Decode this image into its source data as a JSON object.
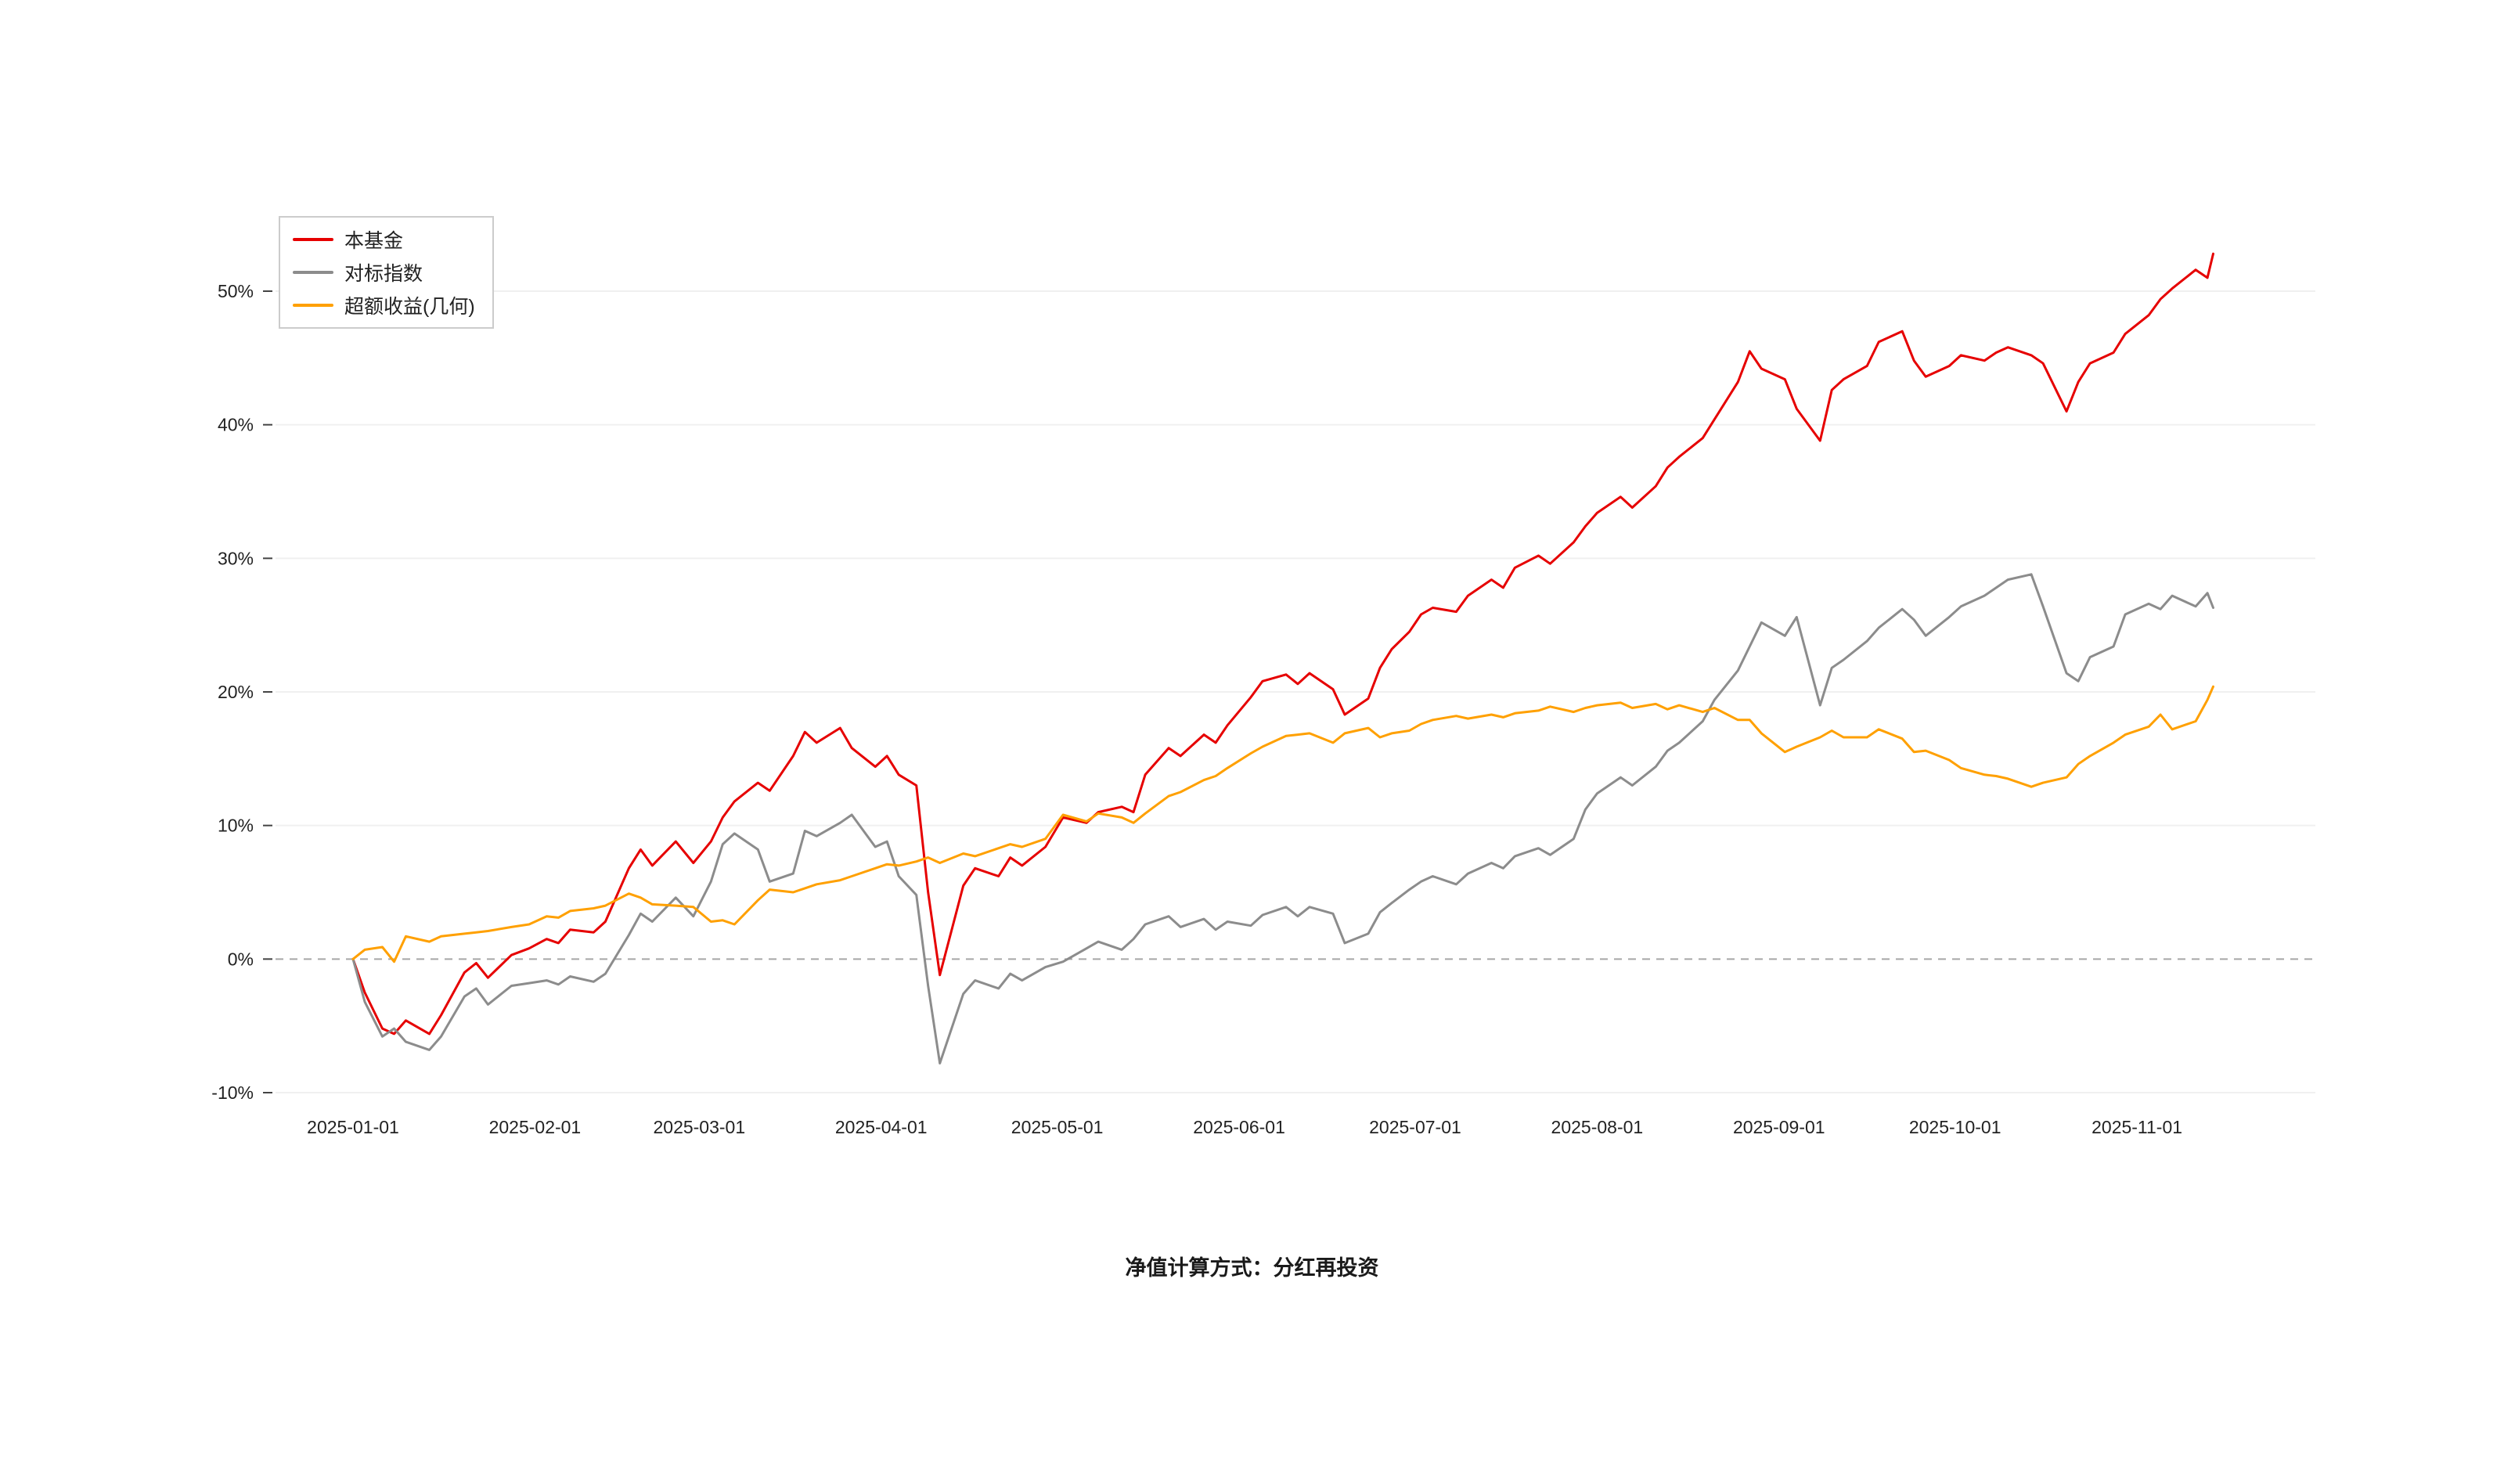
{
  "chart_data": {
    "type": "line",
    "title": "",
    "x": [
      "2025-01-01",
      "2025-01-03",
      "2025-01-06",
      "2025-01-08",
      "2025-01-10",
      "2025-01-14",
      "2025-01-16",
      "2025-01-20",
      "2025-01-22",
      "2025-01-24",
      "2025-01-28",
      "2025-01-31",
      "2025-02-03",
      "2025-02-05",
      "2025-02-07",
      "2025-02-11",
      "2025-02-13",
      "2025-02-17",
      "2025-02-19",
      "2025-02-21",
      "2025-02-25",
      "2025-02-28",
      "2025-03-03",
      "2025-03-05",
      "2025-03-07",
      "2025-03-11",
      "2025-03-13",
      "2025-03-17",
      "2025-03-19",
      "2025-03-21",
      "2025-03-25",
      "2025-03-27",
      "2025-03-31",
      "2025-04-02",
      "2025-04-04",
      "2025-04-07",
      "2025-04-09",
      "2025-04-11",
      "2025-04-15",
      "2025-04-17",
      "2025-04-21",
      "2025-04-23",
      "2025-04-25",
      "2025-04-29",
      "2025-05-02",
      "2025-05-06",
      "2025-05-08",
      "2025-05-12",
      "2025-05-14",
      "2025-05-16",
      "2025-05-20",
      "2025-05-22",
      "2025-05-26",
      "2025-05-28",
      "2025-05-30",
      "2025-06-03",
      "2025-06-05",
      "2025-06-09",
      "2025-06-11",
      "2025-06-13",
      "2025-06-17",
      "2025-06-19",
      "2025-06-23",
      "2025-06-25",
      "2025-06-27",
      "2025-06-30",
      "2025-07-02",
      "2025-07-04",
      "2025-07-08",
      "2025-07-10",
      "2025-07-14",
      "2025-07-16",
      "2025-07-18",
      "2025-07-22",
      "2025-07-24",
      "2025-07-28",
      "2025-07-30",
      "2025-08-01",
      "2025-08-05",
      "2025-08-07",
      "2025-08-11",
      "2025-08-13",
      "2025-08-15",
      "2025-08-19",
      "2025-08-21",
      "2025-08-25",
      "2025-08-27",
      "2025-08-29",
      "2025-09-02",
      "2025-09-04",
      "2025-09-08",
      "2025-09-10",
      "2025-09-12",
      "2025-09-16",
      "2025-09-18",
      "2025-09-22",
      "2025-09-24",
      "2025-09-26",
      "2025-09-30",
      "2025-10-02",
      "2025-10-06",
      "2025-10-08",
      "2025-10-10",
      "2025-10-14",
      "2025-10-16",
      "2025-10-20",
      "2025-10-22",
      "2025-10-24",
      "2025-10-28",
      "2025-10-30",
      "2025-11-03",
      "2025-11-05",
      "2025-11-07",
      "2025-11-11",
      "2025-11-13",
      "2025-11-14"
    ],
    "series": [
      {
        "name": "本基金",
        "color": "#e60000",
        "values": [
          0,
          -2.5,
          -5.2,
          -5.6,
          -4.6,
          -5.6,
          -4.2,
          -1.0,
          -0.3,
          -1.4,
          0.3,
          0.8,
          1.5,
          1.2,
          2.2,
          2.0,
          2.8,
          6.8,
          8.2,
          7.0,
          8.8,
          7.2,
          8.8,
          10.6,
          11.8,
          13.2,
          12.6,
          15.2,
          17.0,
          16.2,
          17.3,
          15.8,
          14.4,
          15.2,
          13.8,
          13.0,
          5.0,
          -1.2,
          5.5,
          6.8,
          6.2,
          7.6,
          7.0,
          8.4,
          10.6,
          10.2,
          11.0,
          11.4,
          11.0,
          13.8,
          15.8,
          15.2,
          16.8,
          16.2,
          17.5,
          19.6,
          20.8,
          21.3,
          20.6,
          21.4,
          20.2,
          18.3,
          19.5,
          21.8,
          23.2,
          24.5,
          25.8,
          26.3,
          26.0,
          27.2,
          28.4,
          27.8,
          29.3,
          30.2,
          29.6,
          31.2,
          32.4,
          33.4,
          34.6,
          33.8,
          35.4,
          36.8,
          37.6,
          39.0,
          40.4,
          43.2,
          45.5,
          44.2,
          43.4,
          41.2,
          38.8,
          42.6,
          43.4,
          44.4,
          46.2,
          47.0,
          44.8,
          43.6,
          44.4,
          45.2,
          44.8,
          45.4,
          45.8,
          45.2,
          44.6,
          41.0,
          43.2,
          44.6,
          45.4,
          46.8,
          48.2,
          49.4,
          50.2,
          51.6,
          51.0,
          52.8
        ]
      },
      {
        "name": "对标指数",
        "color": "#8c8c8c",
        "values": [
          0,
          -3.2,
          -5.8,
          -5.2,
          -6.2,
          -6.8,
          -5.8,
          -2.8,
          -2.2,
          -3.4,
          -2.0,
          -1.8,
          -1.6,
          -1.9,
          -1.3,
          -1.7,
          -1.1,
          1.8,
          3.4,
          2.8,
          4.6,
          3.2,
          5.8,
          8.6,
          9.4,
          8.2,
          5.8,
          6.4,
          9.6,
          9.2,
          10.2,
          10.8,
          8.4,
          8.8,
          6.2,
          4.8,
          -2.0,
          -7.8,
          -2.6,
          -1.6,
          -2.2,
          -1.1,
          -1.6,
          -0.6,
          -0.2,
          0.8,
          1.3,
          0.7,
          1.5,
          2.6,
          3.2,
          2.4,
          3.0,
          2.2,
          2.8,
          2.5,
          3.3,
          3.9,
          3.2,
          3.9,
          3.4,
          1.2,
          1.9,
          3.5,
          4.2,
          5.2,
          5.8,
          6.2,
          5.6,
          6.4,
          7.2,
          6.8,
          7.7,
          8.3,
          7.8,
          9.0,
          11.2,
          12.4,
          13.6,
          13.0,
          14.4,
          15.6,
          16.2,
          17.8,
          19.4,
          21.6,
          23.4,
          25.2,
          24.2,
          25.6,
          19.0,
          21.8,
          22.4,
          23.8,
          24.8,
          26.2,
          25.4,
          24.2,
          25.6,
          26.4,
          27.2,
          27.8,
          28.4,
          28.8,
          26.4,
          21.4,
          20.8,
          22.6,
          23.4,
          25.8,
          26.6,
          26.2,
          27.2,
          26.4,
          27.4,
          26.3
        ]
      },
      {
        "name": "超额收益(几何)",
        "color": "#ffa000",
        "values": [
          0,
          0.7,
          0.9,
          -0.2,
          1.7,
          1.3,
          1.7,
          1.9,
          2.0,
          2.1,
          2.4,
          2.6,
          3.2,
          3.1,
          3.6,
          3.8,
          4.0,
          4.9,
          4.6,
          4.1,
          4.0,
          3.9,
          2.8,
          2.9,
          2.6,
          4.4,
          5.2,
          5.0,
          5.3,
          5.6,
          5.9,
          6.2,
          6.8,
          7.1,
          7.0,
          7.3,
          7.6,
          7.2,
          7.9,
          7.7,
          8.3,
          8.6,
          8.4,
          9.0,
          10.8,
          10.3,
          10.9,
          10.6,
          10.2,
          10.9,
          12.2,
          12.5,
          13.4,
          13.7,
          14.3,
          15.4,
          15.9,
          16.7,
          16.8,
          16.9,
          16.2,
          16.9,
          17.3,
          16.6,
          16.9,
          17.1,
          17.6,
          17.9,
          18.2,
          18.0,
          18.3,
          18.1,
          18.4,
          18.6,
          18.9,
          18.5,
          18.8,
          19.0,
          19.2,
          18.8,
          19.1,
          18.7,
          19.0,
          18.5,
          18.8,
          17.9,
          17.9,
          16.9,
          15.5,
          15.9,
          16.6,
          17.1,
          16.6,
          16.6,
          17.2,
          16.5,
          15.5,
          15.6,
          14.9,
          14.3,
          13.8,
          13.7,
          13.5,
          12.9,
          13.2,
          13.6,
          14.6,
          15.2,
          16.2,
          16.8,
          17.4,
          18.3,
          17.2,
          17.8,
          19.4,
          20.4
        ]
      }
    ],
    "x_ticks": [
      "2025-01-01",
      "2025-02-01",
      "2025-03-01",
      "2025-04-01",
      "2025-05-01",
      "2025-06-01",
      "2025-07-01",
      "2025-08-01",
      "2025-09-01",
      "2025-10-01",
      "2025-11-01"
    ],
    "y_ticks": [
      -10,
      0,
      10,
      20,
      30,
      40,
      50
    ],
    "y_tick_suffix": "%",
    "ylim": [
      -12,
      56
    ],
    "grid": true,
    "zero_line_dashed": true,
    "legend_position": "top-left"
  },
  "footer": {
    "note": "净值计算方式：分红再投资"
  }
}
